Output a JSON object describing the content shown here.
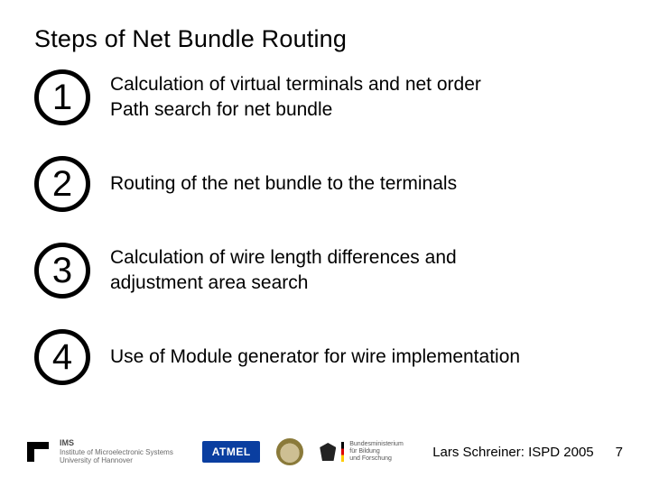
{
  "title": "Steps of Net Bundle Routing",
  "steps": [
    {
      "num": "1",
      "line1": "Calculation of virtual terminals and net order",
      "line2": "Path search for net bundle"
    },
    {
      "num": "2",
      "line1": "Routing of the net bundle to the terminals",
      "line2": ""
    },
    {
      "num": "3",
      "line1": "Calculation of wire length differences and",
      "line2": "adjustment area search"
    },
    {
      "num": "4",
      "line1": "Use of Module generator for wire implementation",
      "line2": ""
    }
  ],
  "footer": {
    "ims": {
      "l1": "IMS",
      "l2": "Institute of Microelectronic Systems",
      "l3": "University of Hannover"
    },
    "atmel": "ATMEL",
    "bmbf": {
      "l1": "Bundesministerium",
      "l2": "für Bildung",
      "l3": "und Forschung"
    },
    "attribution": "Lars Schreiner: ISPD 2005",
    "page": "7"
  },
  "colors": {
    "circle_border": "#000000",
    "atmel_bg": "#0a3ea0",
    "text": "#000000",
    "muted": "#6a6a6a"
  }
}
